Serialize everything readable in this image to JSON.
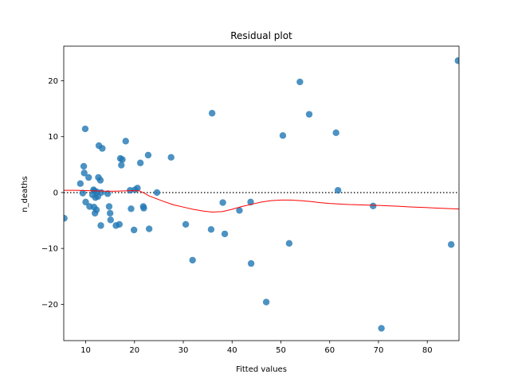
{
  "chart_data": {
    "type": "scatter",
    "title": "Residual plot",
    "xlabel": "Fitted values",
    "ylabel": "n_deaths",
    "xlim": [
      5.5,
      86.5
    ],
    "ylim": [
      -26.5,
      26.2
    ],
    "xticks": [
      10,
      20,
      30,
      40,
      50,
      60,
      70,
      80
    ],
    "yticks": [
      -20,
      -10,
      0,
      10,
      20
    ],
    "grid": false,
    "zero_line": {
      "y": 0,
      "style": "dotted",
      "color": "#262626"
    },
    "point_color": "#1f77b4",
    "smoother_color": "#ff0000",
    "points": [
      {
        "x": 5.6,
        "y": -4.6
      },
      {
        "x": 8.9,
        "y": 1.6
      },
      {
        "x": 9.4,
        "y": -0.1
      },
      {
        "x": 9.6,
        "y": 4.7
      },
      {
        "x": 9.7,
        "y": 3.5
      },
      {
        "x": 9.9,
        "y": 11.4
      },
      {
        "x": 10.0,
        "y": -1.7
      },
      {
        "x": 10.6,
        "y": 2.7
      },
      {
        "x": 10.8,
        "y": -2.5
      },
      {
        "x": 11.4,
        "y": -0.4
      },
      {
        "x": 11.6,
        "y": 0.5
      },
      {
        "x": 11.7,
        "y": -2.6
      },
      {
        "x": 11.8,
        "y": 0.3
      },
      {
        "x": 11.9,
        "y": -3.7
      },
      {
        "x": 12.0,
        "y": -0.9
      },
      {
        "x": 12.2,
        "y": -3.1
      },
      {
        "x": 12.3,
        "y": 0.1
      },
      {
        "x": 12.5,
        "y": -0.7
      },
      {
        "x": 12.6,
        "y": 2.7
      },
      {
        "x": 12.7,
        "y": 8.4
      },
      {
        "x": 13.0,
        "y": 2.2
      },
      {
        "x": 13.1,
        "y": -5.9
      },
      {
        "x": 13.2,
        "y": 0.0
      },
      {
        "x": 13.4,
        "y": 7.9
      },
      {
        "x": 14.5,
        "y": -0.2
      },
      {
        "x": 14.8,
        "y": -2.5
      },
      {
        "x": 15.0,
        "y": -3.7
      },
      {
        "x": 15.1,
        "y": -4.9
      },
      {
        "x": 16.2,
        "y": -5.9
      },
      {
        "x": 16.9,
        "y": -5.7
      },
      {
        "x": 17.1,
        "y": 6.1
      },
      {
        "x": 17.3,
        "y": 4.9
      },
      {
        "x": 17.5,
        "y": 5.9
      },
      {
        "x": 18.2,
        "y": 9.2
      },
      {
        "x": 19.1,
        "y": 0.4
      },
      {
        "x": 19.3,
        "y": -2.9
      },
      {
        "x": 19.9,
        "y": -6.7
      },
      {
        "x": 20.1,
        "y": 0.5
      },
      {
        "x": 20.6,
        "y": 0.8
      },
      {
        "x": 21.2,
        "y": 5.3
      },
      {
        "x": 21.8,
        "y": -2.5
      },
      {
        "x": 21.9,
        "y": -2.8
      },
      {
        "x": 22.8,
        "y": 6.7
      },
      {
        "x": 23.0,
        "y": -6.5
      },
      {
        "x": 24.6,
        "y": 0.0
      },
      {
        "x": 27.5,
        "y": 6.3
      },
      {
        "x": 30.5,
        "y": -5.7
      },
      {
        "x": 31.9,
        "y": -12.1
      },
      {
        "x": 35.7,
        "y": -6.6
      },
      {
        "x": 35.9,
        "y": 14.2
      },
      {
        "x": 38.1,
        "y": -1.8
      },
      {
        "x": 38.5,
        "y": -7.4
      },
      {
        "x": 41.5,
        "y": -3.2
      },
      {
        "x": 43.8,
        "y": -1.7
      },
      {
        "x": 43.9,
        "y": -12.7
      },
      {
        "x": 47.0,
        "y": -19.6
      },
      {
        "x": 50.4,
        "y": 10.2
      },
      {
        "x": 51.7,
        "y": -9.1
      },
      {
        "x": 53.9,
        "y": 19.8
      },
      {
        "x": 55.8,
        "y": 14.0
      },
      {
        "x": 61.3,
        "y": 10.7
      },
      {
        "x": 61.7,
        "y": 0.4
      },
      {
        "x": 68.9,
        "y": -2.4
      },
      {
        "x": 70.6,
        "y": -24.3
      },
      {
        "x": 84.9,
        "y": -9.3
      },
      {
        "x": 86.3,
        "y": 23.6
      }
    ],
    "smoother": {
      "x": [
        5.5,
        8.0,
        10.0,
        12.0,
        14.0,
        16.0,
        18.0,
        19.5,
        21.0,
        22.0,
        23.0,
        24.5,
        26.0,
        28.0,
        30.0,
        32.0,
        34.0,
        35.0,
        36.0,
        37.0,
        38.0,
        40.0,
        42.0,
        44.0,
        46.0,
        48.0,
        50.0,
        52.0,
        54.0,
        56.0,
        58.0,
        60.0,
        62.0,
        64.0,
        66.0,
        68.0,
        70.0,
        72.0,
        74.0,
        76.0,
        78.0,
        80.0,
        82.0,
        84.0,
        86.5
      ],
      "y": [
        0.4,
        0.4,
        0.35,
        0.3,
        0.25,
        0.25,
        0.3,
        0.35,
        0.3,
        -0.1,
        -0.6,
        -1.1,
        -1.6,
        -2.2,
        -2.6,
        -3.0,
        -3.3,
        -3.4,
        -3.5,
        -3.45,
        -3.4,
        -3.0,
        -2.5,
        -2.1,
        -1.7,
        -1.45,
        -1.35,
        -1.35,
        -1.45,
        -1.6,
        -1.8,
        -1.95,
        -2.05,
        -2.15,
        -2.2,
        -2.25,
        -2.3,
        -2.38,
        -2.45,
        -2.55,
        -2.62,
        -2.7,
        -2.78,
        -2.86,
        -2.95
      ]
    }
  }
}
